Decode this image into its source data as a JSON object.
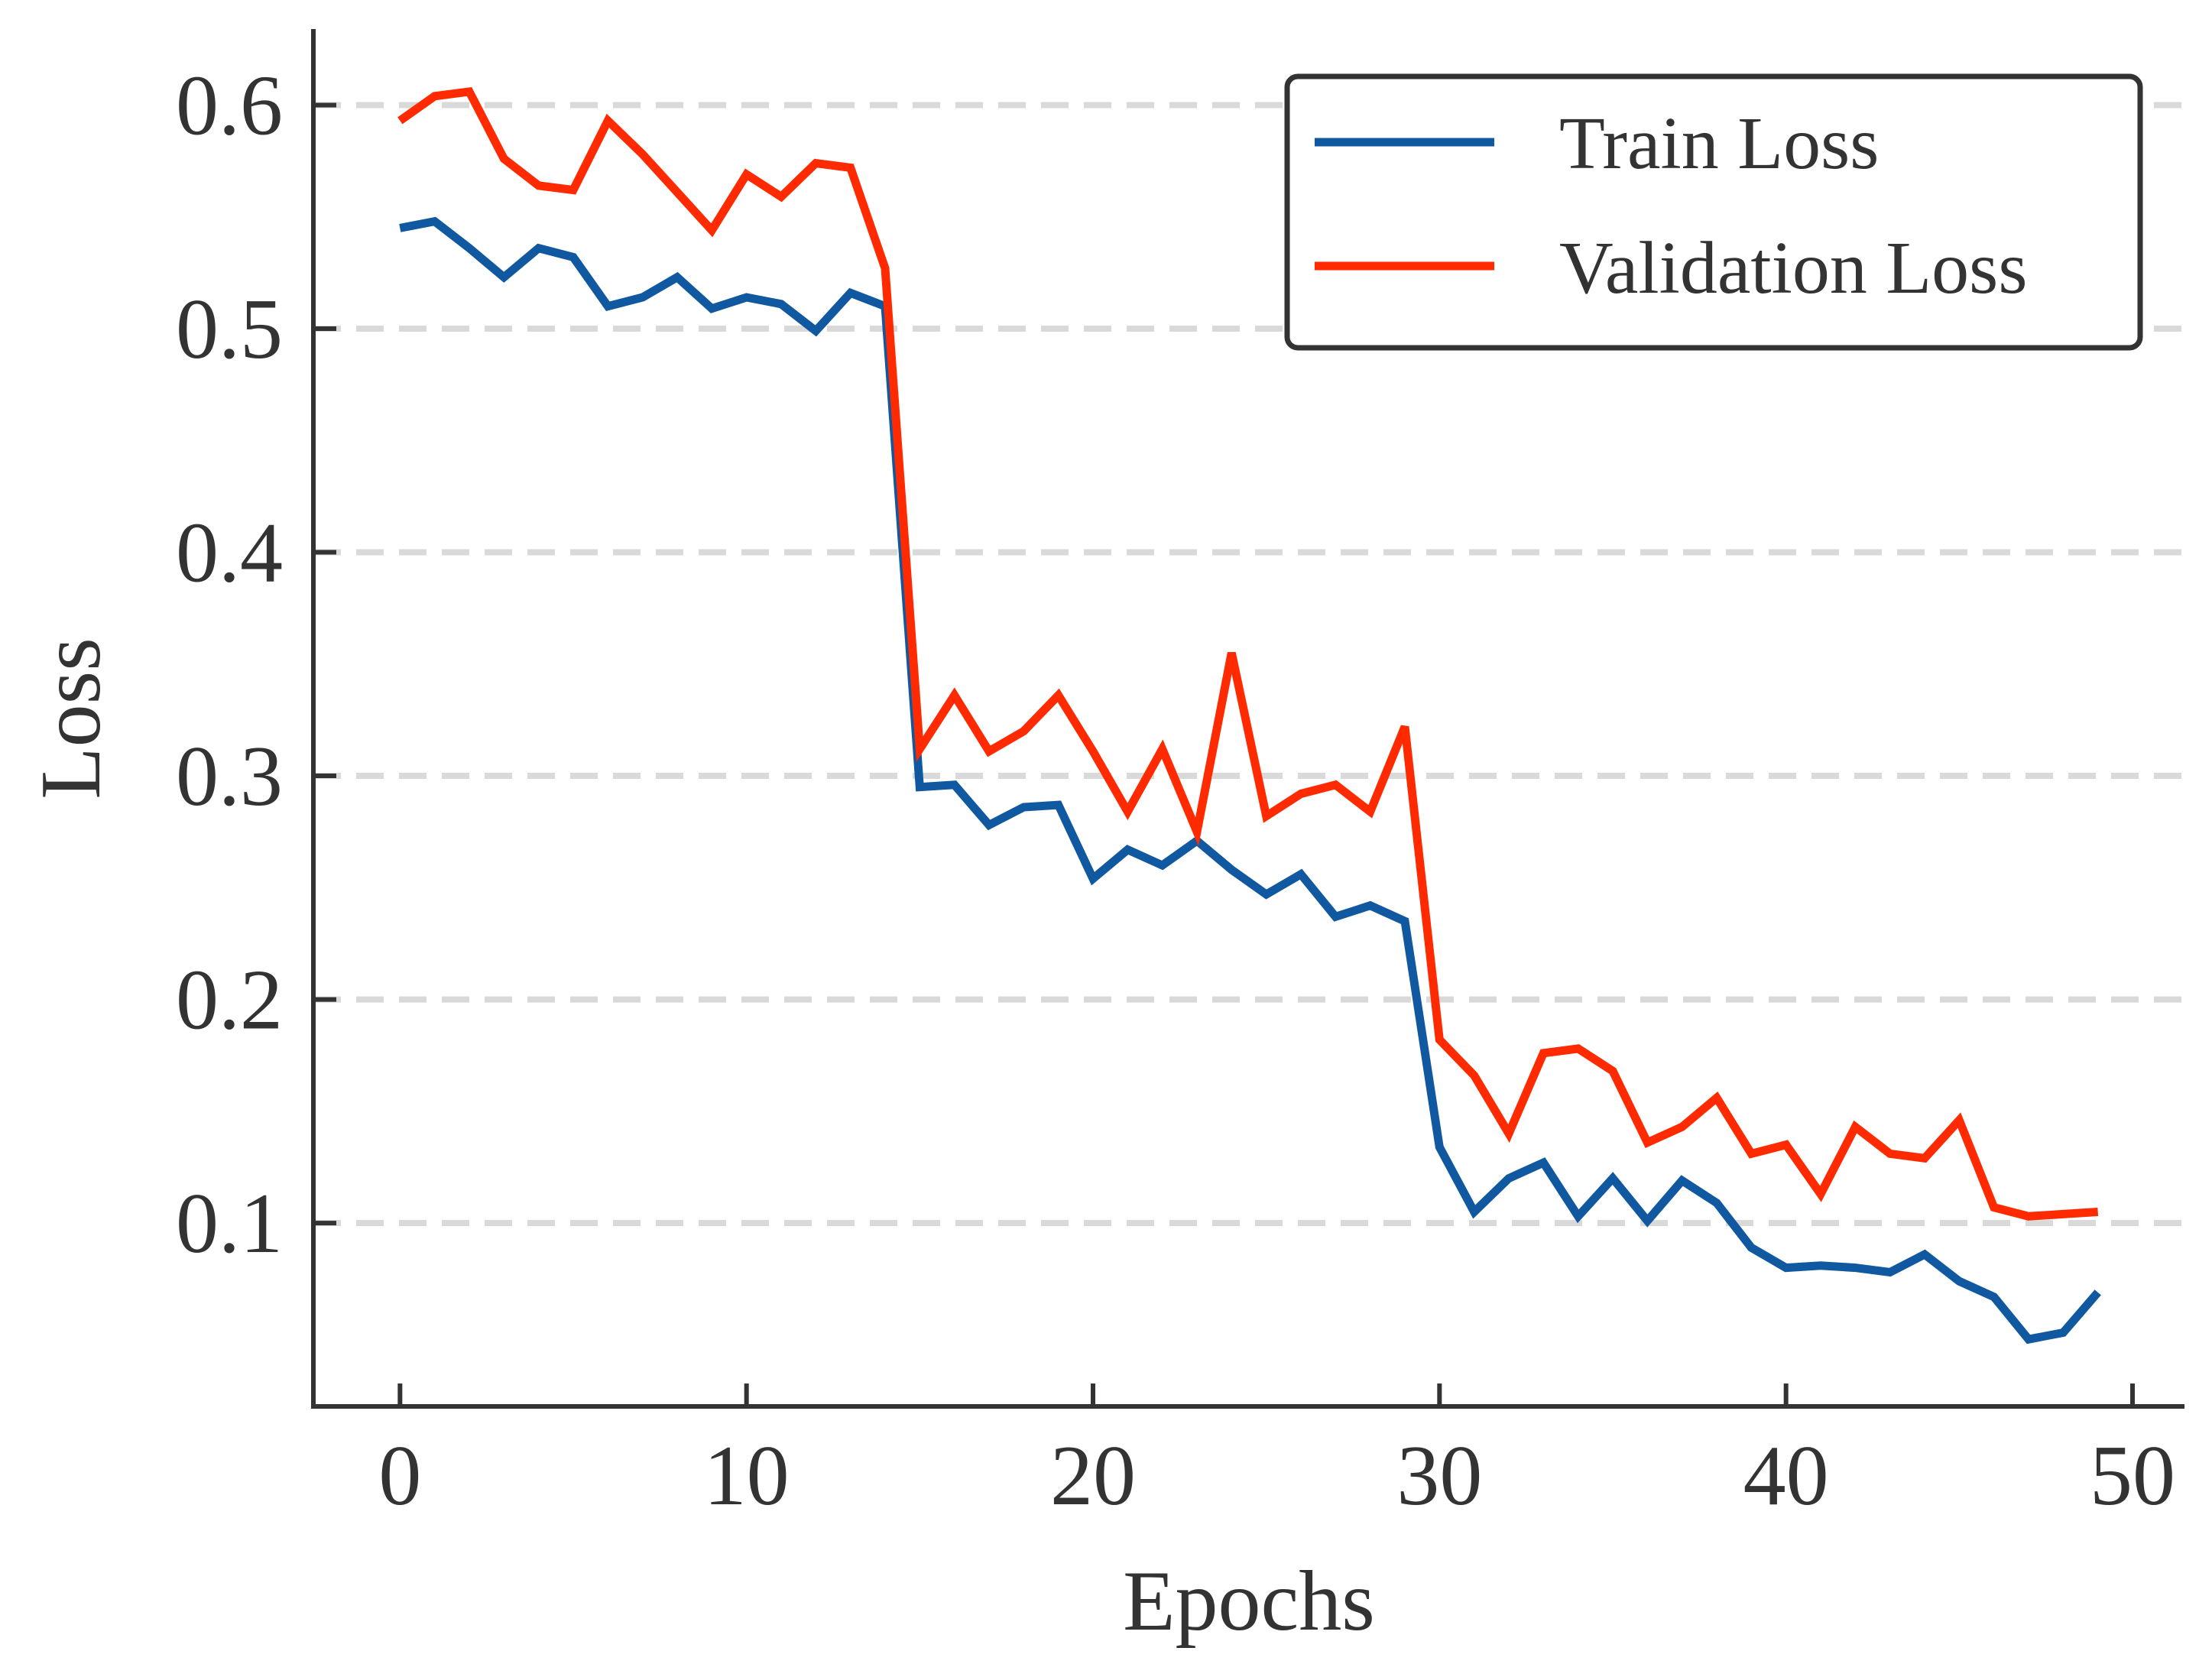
{
  "chart_data": {
    "type": "line",
    "xlabel": "Epochs",
    "ylabel": "Loss",
    "xlim": [
      -2.5,
      51.5
    ],
    "ylim": [
      0.018,
      0.634
    ],
    "xticks": [
      0,
      10,
      20,
      30,
      40,
      50
    ],
    "xtick_labels": [
      "0",
      "10",
      "20",
      "30",
      "40",
      "50"
    ],
    "yticks": [
      0.1,
      0.2,
      0.3,
      0.4,
      0.5,
      0.6
    ],
    "ytick_labels": [
      "0.1",
      "0.2",
      "0.3",
      "0.4",
      "0.5",
      "0.6"
    ],
    "grid": "horizontal dashed",
    "legend_position": "top-right",
    "x": [
      0,
      1,
      2,
      3,
      4,
      5,
      6,
      7,
      8,
      9,
      10,
      11,
      12,
      13,
      14,
      15,
      16,
      17,
      18,
      19,
      20,
      21,
      22,
      23,
      24,
      25,
      26,
      27,
      28,
      29,
      30,
      31,
      32,
      33,
      34,
      35,
      36,
      37,
      38,
      39,
      40,
      41,
      42,
      43,
      44,
      45,
      46,
      47,
      48,
      49
    ],
    "series": [
      {
        "name": "Train Loss",
        "color": "#1058a0",
        "values": [
          0.545,
          0.548,
          0.536,
          0.523,
          0.536,
          0.532,
          0.51,
          0.514,
          0.523,
          0.509,
          0.514,
          0.511,
          0.499,
          0.516,
          0.51,
          0.295,
          0.296,
          0.278,
          0.286,
          0.287,
          0.254,
          0.267,
          0.26,
          0.271,
          0.258,
          0.247,
          0.256,
          0.237,
          0.242,
          0.235,
          0.134,
          0.105,
          0.12,
          0.127,
          0.103,
          0.12,
          0.101,
          0.119,
          0.109,
          0.089,
          0.08,
          0.081,
          0.08,
          0.078,
          0.086,
          0.074,
          0.067,
          0.048,
          0.051,
          0.069
        ]
      },
      {
        "name": "Validation Loss",
        "color": "#ff2a00",
        "values": [
          0.593,
          0.604,
          0.606,
          0.576,
          0.564,
          0.562,
          0.593,
          0.578,
          0.561,
          0.544,
          0.569,
          0.559,
          0.574,
          0.572,
          0.527,
          0.312,
          0.336,
          0.311,
          0.32,
          0.336,
          0.311,
          0.284,
          0.312,
          0.275,
          0.355,
          0.282,
          0.292,
          0.296,
          0.284,
          0.322,
          0.182,
          0.166,
          0.14,
          0.176,
          0.178,
          0.168,
          0.136,
          0.143,
          0.156,
          0.131,
          0.135,
          0.113,
          0.143,
          0.131,
          0.129,
          0.146,
          0.107,
          0.103,
          0.104,
          0.105
        ]
      }
    ]
  }
}
